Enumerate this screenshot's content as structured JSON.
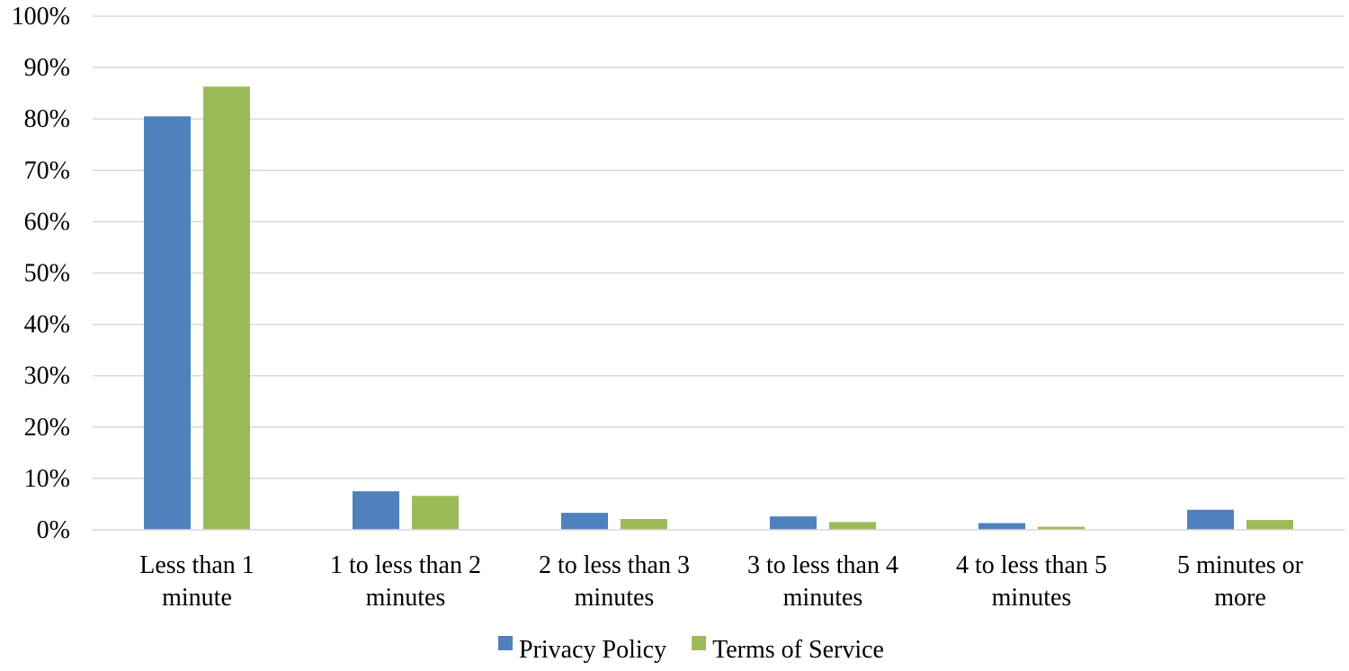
{
  "chart_data": {
    "type": "bar",
    "categories": [
      [
        "Less than 1",
        "minute"
      ],
      [
        "1 to less than 2",
        "minutes"
      ],
      [
        "2 to less than 3",
        "minutes"
      ],
      [
        "3 to less than 4",
        "minutes"
      ],
      [
        "4 to less than 5",
        "minutes"
      ],
      [
        "5 minutes or",
        "more"
      ]
    ],
    "series": [
      {
        "name": "Privacy Policy",
        "color": "#4F81BD",
        "values": [
          80.5,
          7.5,
          3.3,
          2.6,
          1.3,
          3.9
        ]
      },
      {
        "name": "Terms of Service",
        "color": "#9BBB59",
        "values": [
          86.3,
          6.6,
          2.1,
          1.5,
          0.6,
          1.9
        ]
      }
    ],
    "ylim": [
      0,
      100
    ],
    "yticks": [
      0,
      10,
      20,
      30,
      40,
      50,
      60,
      70,
      80,
      90,
      100
    ],
    "ytick_labels": [
      "0%",
      "10%",
      "20%",
      "30%",
      "40%",
      "50%",
      "60%",
      "70%",
      "80%",
      "90%",
      "100%"
    ],
    "grid": true,
    "grid_color": "#D9D9D9",
    "legend_position": "bottom",
    "title": "",
    "xlabel": "",
    "ylabel": ""
  }
}
